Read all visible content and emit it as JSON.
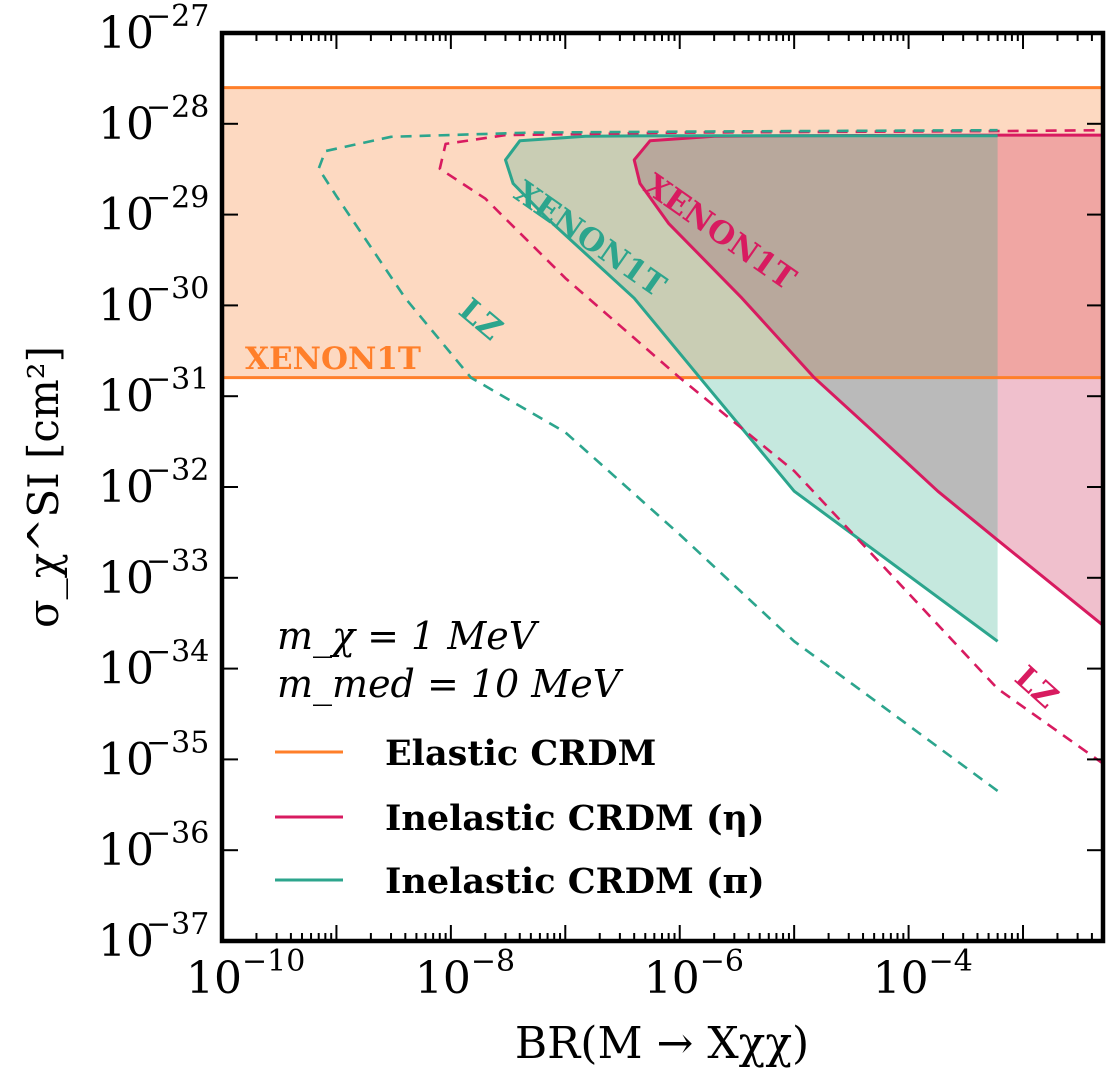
{
  "chart_data": {
    "type": "area",
    "xscale": "log",
    "yscale": "log",
    "xlim": [
      1e-10,
      0.005
    ],
    "ylim": [
      1e-37,
      1e-27
    ],
    "xlabel": "BR(M → Xχχ)",
    "ylabel": "σ_χ^SI [cm²]",
    "x_tick_labels": [
      {
        "value": 1e-10,
        "base": "10",
        "exp": "−10"
      },
      {
        "value": 1e-08,
        "base": "10",
        "exp": "−8"
      },
      {
        "value": 1e-06,
        "base": "10",
        "exp": "−6"
      },
      {
        "value": 0.0001,
        "base": "10",
        "exp": "−4"
      }
    ],
    "y_tick_labels": [
      {
        "value": 1e-27,
        "base": "10",
        "exp": "−27"
      },
      {
        "value": 1e-28,
        "base": "10",
        "exp": "−28"
      },
      {
        "value": 1e-29,
        "base": "10",
        "exp": "−29"
      },
      {
        "value": 1e-30,
        "base": "10",
        "exp": "−30"
      },
      {
        "value": 1e-31,
        "base": "10",
        "exp": "−31"
      },
      {
        "value": 1e-32,
        "base": "10",
        "exp": "−32"
      },
      {
        "value": 1e-33,
        "base": "10",
        "exp": "−33"
      },
      {
        "value": 1e-34,
        "base": "10",
        "exp": "−34"
      },
      {
        "value": 1e-35,
        "base": "10",
        "exp": "−35"
      },
      {
        "value": 1e-36,
        "base": "10",
        "exp": "−36"
      },
      {
        "value": 1e-37,
        "base": "10",
        "exp": "−37"
      }
    ],
    "parameters": [
      "m_χ = 1 MeV",
      "m_med = 10 MeV"
    ],
    "legend": [
      {
        "label": "Elastic CRDM",
        "color": "#ff7f2a"
      },
      {
        "label": "Inelastic CRDM (η)",
        "color": "#d81b60"
      },
      {
        "label": "Inelastic CRDM (π)",
        "color": "#2ca58d"
      }
    ],
    "series": [
      {
        "name": "Elastic CRDM",
        "kind": "band",
        "color": "#ff7f2a",
        "fill": "#fdd9c1",
        "y_lower": 1.6e-31,
        "y_upper": 2.5e-28,
        "label": "XENON1T"
      },
      {
        "name": "Inelastic CRDM (η)",
        "kind": "excluded-region",
        "color": "#d81b60",
        "fill": "#f0c0cd",
        "label": "XENON1T",
        "points": [
          [
            0.005,
            3e-34
          ],
          [
            0.0006,
            2.6e-33
          ],
          [
            0.00018,
            9e-33
          ],
          [
            5e-05,
            4e-32
          ],
          [
            1.5e-05,
            1.6e-31
          ],
          [
            3.5e-06,
            1.2e-30
          ],
          [
            8e-07,
            8e-30
          ],
          [
            4.5e-07,
            2.2e-29
          ],
          [
            4e-07,
            4e-29
          ],
          [
            5.5e-07,
            6.5e-29
          ],
          [
            2e-06,
            7.3e-29
          ],
          [
            1e-05,
            7.4e-29
          ],
          [
            0.0006,
            7.5e-29
          ],
          [
            0.005,
            7.5e-29
          ]
        ]
      },
      {
        "name": "Inelastic CRDM (π)",
        "kind": "excluded-region",
        "color": "#2ca58d",
        "fill": "#c5e8de",
        "label": "XENON1T",
        "points": [
          [
            0.0006,
            2e-34
          ],
          [
            1e-05,
            9e-33
          ],
          [
            1.5e-06,
            1.6e-31
          ],
          [
            4e-07,
            1.2e-30
          ],
          [
            7e-08,
            9e-30
          ],
          [
            3.5e-08,
            2.2e-29
          ],
          [
            3e-08,
            4e-29
          ],
          [
            4e-08,
            6.5e-29
          ],
          [
            1.5e-07,
            7.3e-29
          ],
          [
            1e-06,
            7.4e-29
          ],
          [
            0.0006,
            7.4e-29
          ]
        ]
      },
      {
        "name": "LZ (η)",
        "kind": "projection",
        "color": "#d81b60",
        "dashed": true,
        "label": "LZ",
        "points": [
          [
            0.005,
            9e-36
          ],
          [
            0.0006,
            6e-35
          ],
          [
            1e-05,
            1.5e-32
          ],
          [
            1e-06,
            1.6e-31
          ],
          [
            1e-07,
            2e-30
          ],
          [
            2e-08,
            1.5e-29
          ],
          [
            8e-09,
            3.2e-29
          ],
          [
            9e-09,
            6e-29
          ],
          [
            3e-08,
            7.5e-29
          ],
          [
            1e-06,
            8e-29
          ],
          [
            0.0006,
            8.3e-29
          ],
          [
            0.005,
            8.5e-29
          ]
        ]
      },
      {
        "name": "LZ (π)",
        "kind": "projection",
        "color": "#2ca58d",
        "dashed": true,
        "label": "LZ",
        "points": [
          [
            0.0006,
            4.5e-36
          ],
          [
            1e-05,
            2e-34
          ],
          [
            1e-06,
            3e-33
          ],
          [
            1e-07,
            4e-32
          ],
          [
            1.5e-08,
            1.6e-31
          ],
          [
            4e-09,
            1.2e-30
          ],
          [
            1e-09,
            1.6e-29
          ],
          [
            7e-10,
            3.2e-29
          ],
          [
            8e-10,
            5e-29
          ],
          [
            3e-09,
            7.2e-29
          ],
          [
            5e-08,
            8e-29
          ],
          [
            1e-06,
            8.2e-29
          ],
          [
            0.0006,
            8.5e-29
          ]
        ]
      }
    ],
    "annotations": [
      {
        "text": "XENON1T",
        "color": "#ff7f2a"
      },
      {
        "text": "XENON1T",
        "color": "#2ca58d"
      },
      {
        "text": "XENON1T",
        "color": "#d81b60"
      },
      {
        "text": "LZ",
        "color": "#2ca58d"
      },
      {
        "text": "LZ",
        "color": "#d81b60"
      }
    ]
  }
}
